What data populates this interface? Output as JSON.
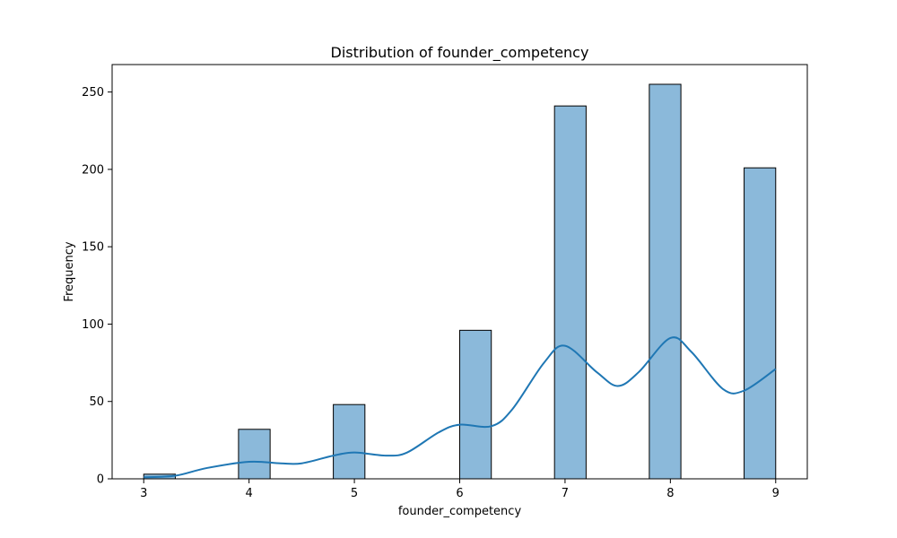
{
  "chart_data": {
    "type": "bar",
    "title": "Distribution of founder_competency",
    "xlabel": "founder_competency",
    "ylabel": "Frequency",
    "xlim": [
      2.7,
      9.3
    ],
    "ylim": [
      0,
      267.75
    ],
    "x_ticks": [
      3,
      4,
      5,
      6,
      7,
      8,
      9
    ],
    "y_ticks": [
      0,
      50,
      100,
      150,
      200,
      250
    ],
    "bins": [
      {
        "x0": 3.0,
        "x1": 3.3,
        "value": 3
      },
      {
        "x0": 3.3,
        "x1": 3.6,
        "value": 0
      },
      {
        "x0": 3.6,
        "x1": 3.9,
        "value": 0
      },
      {
        "x0": 3.9,
        "x1": 4.2,
        "value": 32
      },
      {
        "x0": 4.2,
        "x1": 4.5,
        "value": 0
      },
      {
        "x0": 4.5,
        "x1": 4.8,
        "value": 0
      },
      {
        "x0": 4.8,
        "x1": 5.1,
        "value": 48
      },
      {
        "x0": 5.1,
        "x1": 5.4,
        "value": 0
      },
      {
        "x0": 5.4,
        "x1": 5.7,
        "value": 0
      },
      {
        "x0": 5.7,
        "x1": 6.0,
        "value": 0
      },
      {
        "x0": 6.0,
        "x1": 6.3,
        "value": 96
      },
      {
        "x0": 6.3,
        "x1": 6.6,
        "value": 0
      },
      {
        "x0": 6.6,
        "x1": 6.9,
        "value": 0
      },
      {
        "x0": 6.9,
        "x1": 7.2,
        "value": 241
      },
      {
        "x0": 7.2,
        "x1": 7.5,
        "value": 0
      },
      {
        "x0": 7.5,
        "x1": 7.8,
        "value": 0
      },
      {
        "x0": 7.8,
        "x1": 8.1,
        "value": 255
      },
      {
        "x0": 8.1,
        "x1": 8.4,
        "value": 0
      },
      {
        "x0": 8.4,
        "x1": 8.7,
        "value": 0
      },
      {
        "x0": 8.7,
        "x1": 9.0,
        "value": 201
      }
    ],
    "kde": {
      "x": [
        3.0,
        3.3,
        3.6,
        4.0,
        4.3,
        4.5,
        4.8,
        5.0,
        5.3,
        5.5,
        5.8,
        6.0,
        6.3,
        6.5,
        6.8,
        7.0,
        7.3,
        7.5,
        7.7,
        8.0,
        8.2,
        8.5,
        8.7,
        9.0
      ],
      "y": [
        1,
        2,
        7,
        11,
        10,
        10,
        15,
        17,
        15,
        17,
        30,
        35,
        34,
        45,
        75,
        86,
        69,
        60,
        69,
        91,
        82,
        58,
        57,
        71
      ]
    },
    "colors": {
      "bar_fill": "#8bb9da",
      "bar_edge": "#000000",
      "kde_line": "#1f77b4"
    },
    "grid": false,
    "legend": "none"
  }
}
